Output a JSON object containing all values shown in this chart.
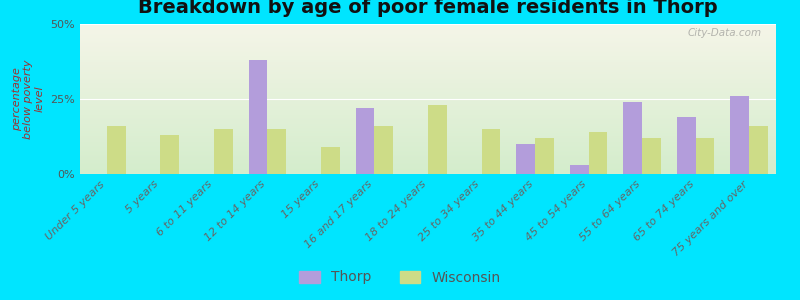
{
  "title": "Breakdown by age of poor female residents in Thorp",
  "ylabel": "percentage\nbelow poverty\nlevel",
  "categories": [
    "Under 5 years",
    "5 years",
    "6 to 11 years",
    "12 to 14 years",
    "15 years",
    "16 and 17 years",
    "18 to 24 years",
    "25 to 34 years",
    "35 to 44 years",
    "45 to 54 years",
    "55 to 64 years",
    "65 to 74 years",
    "75 years and over"
  ],
  "thorp": [
    0,
    0,
    0,
    38,
    0,
    22,
    0,
    0,
    10,
    3,
    24,
    19,
    26
  ],
  "wisconsin": [
    16,
    13,
    15,
    15,
    9,
    16,
    23,
    15,
    12,
    14,
    12,
    12,
    16
  ],
  "thorp_color": "#b39ddb",
  "wisconsin_color": "#cddc87",
  "background_top": "#f5f5e8",
  "background_bottom": "#d4edcc",
  "outer_background": "#00e5ff",
  "ylim": [
    0,
    50
  ],
  "yticks": [
    0,
    25,
    50
  ],
  "ytick_labels": [
    "0%",
    "25%",
    "50%"
  ],
  "bar_width": 0.35,
  "title_fontsize": 14,
  "axis_label_fontsize": 8,
  "tick_fontsize": 8,
  "legend_fontsize": 10
}
